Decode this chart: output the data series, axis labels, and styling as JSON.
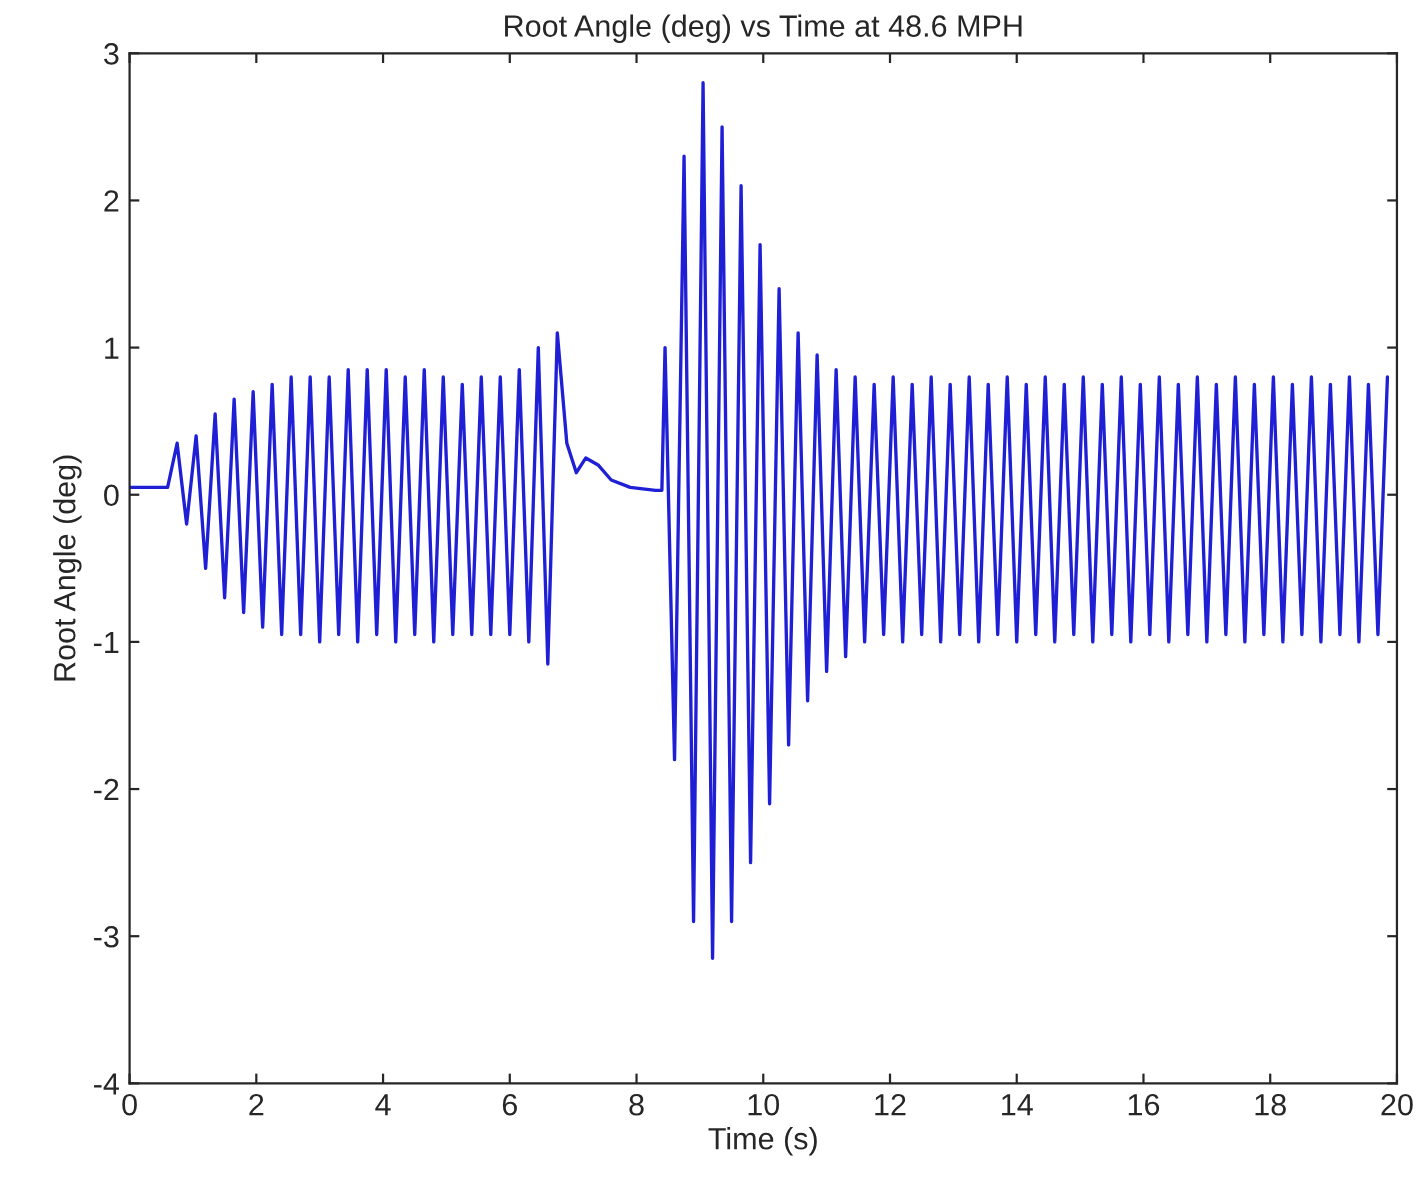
{
  "chart_data": {
    "type": "line",
    "title": "Root Angle (deg) vs Time at 48.6 MPH",
    "xlabel": "Time (s)",
    "ylabel": "Root Angle (deg)",
    "series": [
      {
        "color": "#1f1fd6",
        "x": [
          0,
          0.3,
          0.6,
          0.75,
          0.9,
          1.05,
          1.2,
          1.35,
          1.5,
          1.65,
          1.8,
          1.95,
          2.1,
          2.25,
          2.4,
          2.55,
          2.7,
          2.85,
          3.0,
          3.15,
          3.3,
          3.45,
          3.6,
          3.75,
          3.9,
          4.05,
          4.2,
          4.35,
          4.5,
          4.65,
          4.8,
          4.95,
          5.1,
          5.25,
          5.4,
          5.55,
          5.7,
          5.85,
          6.0,
          6.15,
          6.3,
          6.45,
          6.6,
          6.75,
          6.9,
          7.05,
          7.2,
          7.4,
          7.6,
          7.9,
          8.3,
          8.4,
          8.45,
          8.6,
          8.75,
          8.9,
          9.05,
          9.2,
          9.35,
          9.5,
          9.65,
          9.8,
          9.95,
          10.1,
          10.25,
          10.4,
          10.55,
          10.7,
          10.85,
          11.0,
          11.15,
          11.3,
          11.45,
          11.6,
          11.75,
          11.9,
          12.05,
          12.2,
          12.35,
          12.5,
          12.65,
          12.8,
          12.95,
          13.1,
          13.25,
          13.4,
          13.55,
          13.7,
          13.85,
          14.0,
          14.15,
          14.3,
          14.45,
          14.6,
          14.75,
          14.9,
          15.05,
          15.2,
          15.35,
          15.5,
          15.65,
          15.8,
          15.95,
          16.1,
          16.25,
          16.4,
          16.55,
          16.7,
          16.85,
          17.0,
          17.15,
          17.3,
          17.45,
          17.6,
          17.75,
          17.9,
          18.05,
          18.2,
          18.35,
          18.5,
          18.65,
          18.8,
          18.95,
          19.1,
          19.25,
          19.4,
          19.55,
          19.7,
          19.85
        ],
        "values": [
          0.05,
          0.05,
          0.05,
          0.35,
          -0.2,
          0.4,
          -0.5,
          0.55,
          -0.7,
          0.65,
          -0.8,
          0.7,
          -0.9,
          0.75,
          -0.95,
          0.8,
          -0.95,
          0.8,
          -1.0,
          0.8,
          -0.95,
          0.85,
          -1.0,
          0.85,
          -0.95,
          0.85,
          -1.0,
          0.8,
          -0.95,
          0.85,
          -1.0,
          0.8,
          -0.95,
          0.75,
          -0.95,
          0.8,
          -0.95,
          0.8,
          -0.95,
          0.85,
          -1.0,
          1.0,
          -1.15,
          1.1,
          0.35,
          0.15,
          0.25,
          0.2,
          0.1,
          0.05,
          0.03,
          0.03,
          1.0,
          -1.8,
          2.3,
          -2.9,
          2.8,
          -3.15,
          2.5,
          -2.9,
          2.1,
          -2.5,
          1.7,
          -2.1,
          1.4,
          -1.7,
          1.1,
          -1.4,
          0.95,
          -1.2,
          0.85,
          -1.1,
          0.8,
          -1.0,
          0.75,
          -0.95,
          0.8,
          -1.0,
          0.75,
          -0.95,
          0.8,
          -1.0,
          0.75,
          -0.95,
          0.8,
          -1.0,
          0.75,
          -0.95,
          0.8,
          -1.0,
          0.75,
          -0.95,
          0.8,
          -1.0,
          0.75,
          -0.95,
          0.8,
          -1.0,
          0.75,
          -0.95,
          0.8,
          -1.0,
          0.75,
          -0.95,
          0.8,
          -1.0,
          0.75,
          -0.95,
          0.8,
          -1.0,
          0.75,
          -0.95,
          0.8,
          -1.0,
          0.75,
          -0.95,
          0.8,
          -1.0,
          0.75,
          -0.95,
          0.8,
          -1.0,
          0.75,
          -0.95,
          0.8,
          -1.0,
          0.75,
          -0.95,
          0.8
        ]
      }
    ],
    "xlim": [
      0,
      20
    ],
    "xticks": [
      0,
      2,
      4,
      6,
      8,
      10,
      12,
      14,
      16,
      18,
      20
    ],
    "ylim": [
      -4,
      3
    ],
    "yticks": [
      -4,
      -3,
      -2,
      -1,
      0,
      1,
      2,
      3
    ],
    "grid": false
  }
}
